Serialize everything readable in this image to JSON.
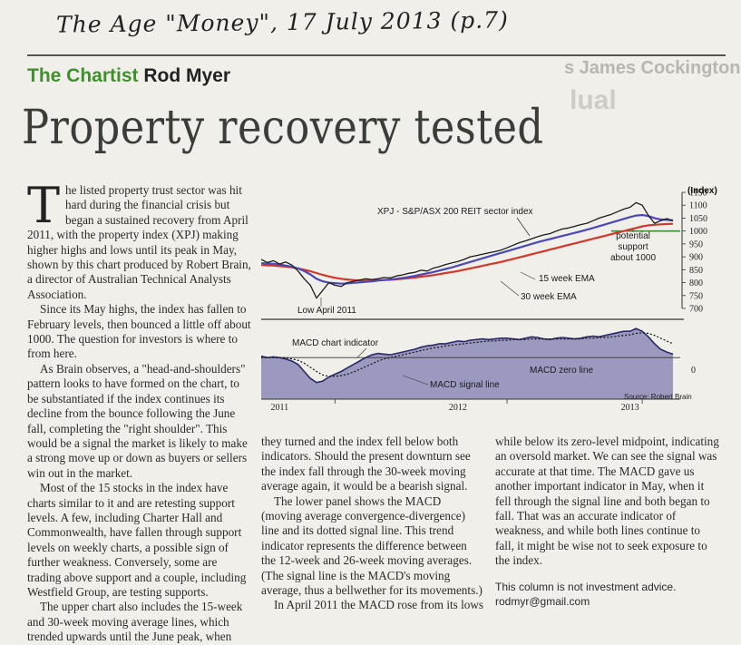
{
  "handwritten_note": "The Age \"Money\", 17 July 2013 (p.7)",
  "bleed_text": {
    "line1": "s James Cockington",
    "line2": "lual"
  },
  "byline": {
    "section": "The Chartist",
    "author": "Rod Myer"
  },
  "headline": "Property recovery tested",
  "article": {
    "dropcap": "T",
    "col1": [
      "he listed property trust sector was hit hard during the financial crisis but began a sustained recovery from April 2011, with the property index (XPJ) making higher highs and lows until its peak in May, shown by this chart produced by Robert Brain, a director of Australian Technical Analysts Association.",
      "Since its May highs, the index has fallen to February levels, then bounced a little off about 1000. The question for investors is where to from here.",
      "As Brain observes, a \"head-and-shoulders\" pattern looks to have formed on the chart, to be substantiated if the index continues its decline from the bounce following the June fall, completing the \"right shoulder\". This would be a signal the market is likely to make a strong move up or down as buyers or sellers win out in the market.",
      "Most of the 15 stocks in the index have charts similar to it and are retesting support levels. A few, including Charter Hall and Commonwealth, have fallen through support levels on weekly charts, a possible sign of further weakness. Conversely, some are trading above support and a couple, including Westfield Group, are testing supports.",
      "The upper chart also includes the 15-week and 30-week moving average lines, which trended upwards until the June peak, when"
    ],
    "col2": [
      "they turned and the index fell below both indicators. Should the present downturn see the index fall through the 30-week moving average again, it would be a bearish signal.",
      "The lower panel shows the MACD (moving average convergence-divergence) line and its dotted signal line. This trend indicator represents the difference between the 12-week and 26-week moving averages. (The signal line is the MACD's moving average, thus a bellwether for its movements.)",
      "In April 2011 the MACD rose from its lows"
    ],
    "col3": [
      "while below its zero-level midpoint, indicating an oversold market. We can see the signal was accurate at that time. The MACD gave us another important indicator in May, when it fell through the signal line and both began to fall. That was an accurate indicator of weakness, and while both lines continue to fall, it might be wise not to seek exposure to the index."
    ],
    "disclaimer": "This column is not investment advice.",
    "email": "rodmyr@gmail.com"
  },
  "chart_data": {
    "type": "line",
    "colors": {
      "index": "#1a1a1a",
      "ema15": "#4b48b8",
      "ema30": "#d2382a",
      "support": "#3f8f2f",
      "macd_fill": "#8d8ab8",
      "macd_line": "#2a2a6a"
    },
    "upper": {
      "ylabel": "(Index)",
      "ylim": [
        700,
        1150
      ],
      "yticks": [
        700,
        750,
        800,
        850,
        900,
        950,
        1000,
        1050,
        1100,
        1150
      ],
      "series": [
        {
          "name": "XPJ - S&P/ASX 200 REIT sector index",
          "key": "index",
          "values": [
            890,
            878,
            885,
            872,
            880,
            868,
            845,
            815,
            790,
            740,
            770,
            800,
            790,
            785,
            800,
            805,
            810,
            815,
            812,
            815,
            820,
            818,
            826,
            830,
            836,
            840,
            848,
            845,
            856,
            862,
            870,
            876,
            882,
            890,
            900,
            905,
            910,
            915,
            920,
            926,
            935,
            945,
            955,
            962,
            970,
            978,
            985,
            990,
            1000,
            1008,
            1012,
            1018,
            1025,
            1030,
            1040,
            1050,
            1058,
            1065,
            1075,
            1085,
            1092,
            1110,
            1100,
            1060,
            1030,
            1040,
            1048,
            1040
          ]
        },
        {
          "name": "15 week EMA",
          "key": "ema15",
          "values": [
            875,
            874,
            873,
            870,
            866,
            862,
            855,
            845,
            832,
            815,
            805,
            800,
            798,
            796,
            797,
            799,
            801,
            803,
            805,
            808,
            810,
            812,
            815,
            818,
            822,
            826,
            831,
            836,
            841,
            847,
            853,
            859,
            866,
            873,
            880,
            887,
            894,
            901,
            908,
            915,
            922,
            929,
            936,
            943,
            950,
            957,
            963,
            969,
            975,
            981,
            987,
            993,
            999,
            1005,
            1012,
            1019,
            1026,
            1033,
            1040,
            1047,
            1054,
            1060,
            1062,
            1058,
            1050,
            1045,
            1043,
            1041
          ]
        },
        {
          "name": "30 week EMA",
          "key": "ema30",
          "values": [
            868,
            867,
            866,
            864,
            862,
            859,
            855,
            850,
            844,
            837,
            830,
            824,
            819,
            815,
            812,
            810,
            809,
            808,
            808,
            809,
            810,
            811,
            813,
            815,
            817,
            820,
            823,
            826,
            829,
            833,
            837,
            841,
            845,
            850,
            855,
            860,
            865,
            870,
            875,
            880,
            886,
            892,
            898,
            904,
            910,
            916,
            922,
            928,
            934,
            940,
            946,
            952,
            958,
            964,
            970,
            976,
            982,
            988,
            994,
            1000,
            1006,
            1012,
            1018,
            1022,
            1024,
            1026,
            1027,
            1028
          ]
        }
      ],
      "annotations": {
        "low": "Low April 2011",
        "support": "potential support about 1000",
        "support_level": 1000
      }
    },
    "lower": {
      "ylim": [
        -0.6,
        0.5
      ],
      "zero_label": "0",
      "series": [
        {
          "name": "MACD chart indicator",
          "key": "macd",
          "values": [
            0.02,
            0.0,
            0.01,
            0.0,
            -0.02,
            -0.05,
            -0.1,
            -0.2,
            -0.3,
            -0.36,
            -0.34,
            -0.28,
            -0.24,
            -0.2,
            -0.15,
            -0.1,
            -0.05,
            0.0,
            0.04,
            0.06,
            0.05,
            0.04,
            0.06,
            0.08,
            0.1,
            0.12,
            0.15,
            0.17,
            0.18,
            0.2,
            0.2,
            0.22,
            0.24,
            0.23,
            0.25,
            0.26,
            0.27,
            0.26,
            0.27,
            0.28,
            0.28,
            0.27,
            0.26,
            0.28,
            0.3,
            0.29,
            0.27,
            0.26,
            0.28,
            0.29,
            0.28,
            0.27,
            0.28,
            0.3,
            0.31,
            0.3,
            0.32,
            0.34,
            0.36,
            0.38,
            0.38,
            0.42,
            0.38,
            0.3,
            0.2,
            0.12,
            0.08,
            0.05
          ]
        },
        {
          "name": "MACD signal line",
          "key": "signal",
          "values": [
            0.0,
            0.0,
            0.0,
            0.0,
            0.0,
            -0.02,
            -0.04,
            -0.08,
            -0.14,
            -0.2,
            -0.25,
            -0.27,
            -0.27,
            -0.26,
            -0.24,
            -0.21,
            -0.17,
            -0.13,
            -0.09,
            -0.05,
            -0.02,
            0.0,
            0.02,
            0.04,
            0.06,
            0.08,
            0.1,
            0.12,
            0.14,
            0.15,
            0.17,
            0.18,
            0.19,
            0.2,
            0.21,
            0.22,
            0.23,
            0.24,
            0.24,
            0.25,
            0.25,
            0.26,
            0.26,
            0.26,
            0.27,
            0.27,
            0.27,
            0.27,
            0.27,
            0.27,
            0.27,
            0.27,
            0.27,
            0.28,
            0.28,
            0.29,
            0.29,
            0.3,
            0.31,
            0.32,
            0.33,
            0.35,
            0.36,
            0.35,
            0.32,
            0.28,
            0.24,
            0.2
          ]
        }
      ],
      "zero_line_label": "MACD zero line"
    },
    "x_labels": [
      "2011",
      "2012",
      "2013"
    ],
    "source": "Source: Robert Brain"
  }
}
